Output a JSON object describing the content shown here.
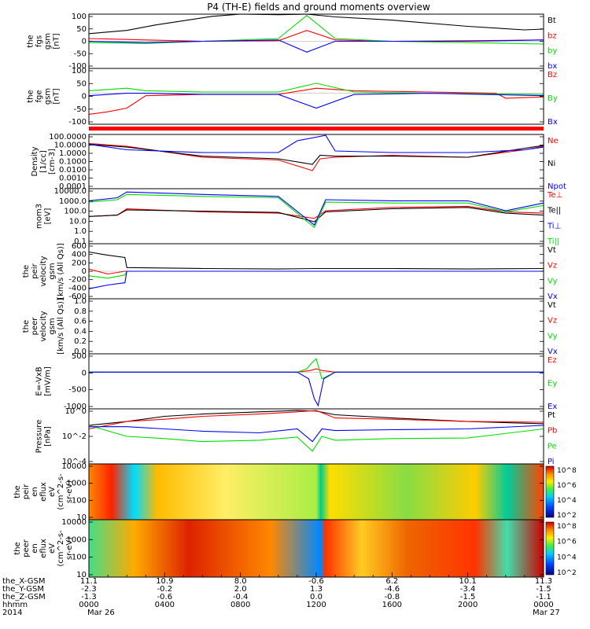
{
  "title": "P4 (TH-E) fields and ground moments overview",
  "colors": {
    "black": "#000000",
    "red": "#ff0000",
    "green": "#00dd00",
    "blue": "#0000ff"
  },
  "chart_data": [
    {
      "type": "line",
      "panel": "fgs",
      "ylabel": [
        "the",
        "fgs",
        "gsm",
        "[nT]"
      ],
      "yticks": [
        "100",
        "50",
        "0",
        "-50",
        "-100"
      ],
      "ylim": [
        -100,
        100
      ],
      "legend": [
        {
          "name": "Bt",
          "color": "black"
        },
        {
          "name": "bz",
          "color": "red"
        },
        {
          "name": "by",
          "color": "green"
        },
        {
          "name": "bx",
          "color": "blue"
        }
      ],
      "series": [
        {
          "name": "Bt",
          "x": [
            0,
            2,
            3.5,
            6.5,
            8,
            10,
            11.5,
            13,
            16,
            20,
            23,
            24
          ],
          "y": [
            28,
            40,
            60,
            92,
            100,
            98,
            100,
            90,
            78,
            55,
            42,
            45
          ]
        },
        {
          "name": "bz",
          "x": [
            0,
            3,
            6,
            10,
            11.5,
            13,
            16,
            20,
            24
          ],
          "y": [
            10,
            5,
            0,
            2,
            40,
            5,
            0,
            2,
            5
          ]
        },
        {
          "name": "by",
          "x": [
            0,
            3,
            6,
            10,
            11.5,
            13,
            16,
            20,
            24
          ],
          "y": [
            -5,
            -8,
            0,
            10,
            95,
            10,
            0,
            -5,
            -10
          ]
        },
        {
          "name": "bx",
          "x": [
            0,
            3,
            6,
            10,
            11.5,
            13,
            16,
            20,
            24
          ],
          "y": [
            0,
            -5,
            0,
            5,
            -40,
            0,
            0,
            0,
            5
          ]
        }
      ]
    },
    {
      "type": "line",
      "panel": "fge",
      "ylabel": [
        "the",
        "fge",
        "gsm",
        "[nT]"
      ],
      "yticks": [
        "100",
        "50",
        "0",
        "-50",
        "-100"
      ],
      "ylim": [
        -125,
        100
      ],
      "legend": [
        {
          "name": "Bz",
          "color": "red"
        },
        {
          "name": "By",
          "color": "green"
        },
        {
          "name": "Bx",
          "color": "blue"
        }
      ],
      "series": [
        {
          "name": "Bz",
          "x": [
            0,
            1,
            2,
            3,
            6,
            10,
            12,
            14,
            18,
            21.5,
            22,
            24
          ],
          "y": [
            -85,
            -75,
            -60,
            -10,
            -5,
            -5,
            20,
            10,
            5,
            0,
            -20,
            -15
          ]
        },
        {
          "name": "By",
          "x": [
            0,
            1,
            2,
            3,
            6,
            10,
            12,
            14,
            18,
            24
          ],
          "y": [
            10,
            15,
            20,
            10,
            5,
            5,
            40,
            5,
            0,
            -5
          ]
        },
        {
          "name": "Bx",
          "x": [
            0,
            1,
            2,
            3,
            6,
            10,
            12,
            14,
            18,
            24
          ],
          "y": [
            -10,
            -5,
            0,
            0,
            -5,
            -5,
            -60,
            -5,
            0,
            -10
          ]
        }
      ]
    },
    {
      "type": "line",
      "panel": "density",
      "scale": "log",
      "ylabel": [
        "Density",
        "[1/cc]",
        "[cm-3]"
      ],
      "yticks": [
        "100.0000",
        "10.0000",
        "1.0000",
        "0.1000",
        "0.0100",
        "0.0010",
        "0.0001"
      ],
      "ylim": [
        0.0001,
        100
      ],
      "legend": [
        {
          "name": "Ne",
          "color": "red"
        },
        {
          "name": "Ni",
          "color": "black"
        },
        {
          "name": "Npot",
          "color": "blue"
        }
      ],
      "series": [
        {
          "name": "Ne",
          "x": [
            0,
            2,
            6,
            10,
            11.8,
            12.2,
            13,
            16,
            20,
            23,
            24
          ],
          "y": [
            10,
            5,
            0.3,
            0.15,
            0.01,
            0.2,
            0.3,
            0.5,
            0.3,
            2,
            5
          ]
        },
        {
          "name": "Ni",
          "x": [
            0,
            2,
            6,
            10,
            11.8,
            12.2,
            13,
            16,
            20,
            23,
            24
          ],
          "y": [
            8,
            4,
            0.4,
            0.2,
            0.05,
            0.5,
            0.4,
            0.4,
            0.3,
            3,
            6
          ]
        },
        {
          "name": "Npot",
          "x": [
            0,
            2,
            6,
            10,
            11,
            12.5,
            13,
            16,
            20,
            23,
            24
          ],
          "y": [
            8,
            2,
            1,
            1,
            20,
            80,
            1.5,
            1,
            1,
            2,
            4
          ]
        }
      ]
    },
    {
      "type": "line",
      "panel": "temperature",
      "scale": "log",
      "ylabel": [
        "mom3",
        "[eV]"
      ],
      "yticks": [
        "10000.0",
        "1000.0",
        "100.0",
        "10.0",
        "1.0",
        "0.1"
      ],
      "ylim": [
        0.1,
        10000
      ],
      "legend": [
        {
          "name": "Te⊥",
          "color": "red"
        },
        {
          "name": "Te||",
          "color": "black"
        },
        {
          "name": "Ti⊥",
          "color": "blue"
        },
        {
          "name": "Ti||",
          "color": "green"
        }
      ],
      "series": [
        {
          "name": "Te⊥",
          "x": [
            0,
            1.5,
            2,
            6,
            10,
            11.9,
            12.5,
            16,
            20,
            22,
            24
          ],
          "y": [
            30,
            40,
            150,
            80,
            60,
            20,
            100,
            200,
            250,
            80,
            60
          ]
        },
        {
          "name": "Te||",
          "x": [
            0,
            1.5,
            2,
            6,
            10,
            11.9,
            12.5,
            16,
            20,
            22,
            24
          ],
          "y": [
            30,
            40,
            120,
            90,
            70,
            10,
            80,
            150,
            200,
            60,
            40
          ]
        },
        {
          "name": "Ti⊥",
          "x": [
            0,
            1.5,
            2,
            6,
            10,
            11.9,
            12.5,
            16,
            20,
            22,
            24
          ],
          "y": [
            800,
            1500,
            5000,
            3000,
            2000,
            5,
            1000,
            800,
            800,
            100,
            500
          ]
        },
        {
          "name": "Ti||",
          "x": [
            0,
            1.5,
            2,
            6,
            10,
            11.9,
            12.5,
            16,
            20,
            22,
            24
          ],
          "y": [
            600,
            1000,
            3000,
            2000,
            1500,
            3,
            600,
            500,
            500,
            80,
            300
          ]
        }
      ]
    },
    {
      "type": "line",
      "panel": "peir_velocity",
      "ylabel": [
        "the",
        "peir",
        "velocity",
        "gsm",
        "[km/s (All Qs)]"
      ],
      "yticks": [
        "600",
        "400",
        "200",
        "0",
        "-200",
        "-400",
        "-600"
      ],
      "ylim": [
        -600,
        600
      ],
      "legend": [
        {
          "name": "Vt",
          "color": "black"
        },
        {
          "name": "Vz",
          "color": "red"
        },
        {
          "name": "Vy",
          "color": "green"
        },
        {
          "name": "Vx",
          "color": "blue"
        }
      ],
      "series": [
        {
          "name": "Vt",
          "x": [
            0,
            1,
            1.9,
            2,
            6,
            10,
            12,
            16,
            20,
            24
          ],
          "y": [
            420,
            350,
            300,
            80,
            60,
            50,
            60,
            60,
            50,
            60
          ]
        },
        {
          "name": "Vz",
          "x": [
            0,
            1,
            1.9,
            2,
            6,
            10,
            12,
            16,
            20,
            24
          ],
          "y": [
            50,
            -60,
            0,
            0,
            0,
            0,
            0,
            0,
            0,
            0
          ]
        },
        {
          "name": "Vy",
          "x": [
            0,
            1,
            1.9,
            2,
            6,
            10,
            12,
            16,
            20,
            24
          ],
          "y": [
            -100,
            -150,
            -80,
            0,
            0,
            0,
            0,
            0,
            0,
            0
          ]
        },
        {
          "name": "Vx",
          "x": [
            0,
            1,
            1.9,
            2,
            6,
            10,
            12,
            16,
            20,
            24
          ],
          "y": [
            -380,
            -300,
            -250,
            0,
            0,
            0,
            0,
            0,
            0,
            0
          ]
        }
      ]
    },
    {
      "type": "line",
      "panel": "peer_velocity",
      "ylabel": [
        "the",
        "peer",
        "velocity",
        "gsm",
        "[km/s (All Qs)]"
      ],
      "yticks": [
        "1.0",
        "0.8",
        "0.6",
        "0.4",
        "0.2",
        "0.0"
      ],
      "ylim": [
        0,
        1
      ],
      "legend": [
        {
          "name": "Vt",
          "color": "black"
        },
        {
          "name": "Vz",
          "color": "red"
        },
        {
          "name": "Vy",
          "color": "green"
        },
        {
          "name": "Vx",
          "color": "blue"
        }
      ],
      "series": []
    },
    {
      "type": "line",
      "panel": "exb",
      "ylabel": [
        "E=-VxB",
        "[mV/m]"
      ],
      "yticks": [
        "500",
        "0",
        "-500",
        "-1000"
      ],
      "ylim": [
        -1100,
        550
      ],
      "legend": [
        {
          "name": "Ez",
          "color": "red"
        },
        {
          "name": "Ey",
          "color": "green"
        },
        {
          "name": "Ex",
          "color": "blue"
        }
      ],
      "series": [
        {
          "name": "Ez",
          "x": [
            0,
            11,
            11.7,
            12,
            12.3,
            13,
            24
          ],
          "y": [
            0,
            0,
            50,
            100,
            50,
            0,
            0
          ]
        },
        {
          "name": "Ey",
          "x": [
            0,
            11,
            11.5,
            11.8,
            12,
            12.3,
            13,
            24
          ],
          "y": [
            0,
            0,
            100,
            300,
            400,
            -200,
            0,
            0
          ]
        },
        {
          "name": "Ex",
          "x": [
            0,
            11,
            11.6,
            11.9,
            12.1,
            12.4,
            13,
            24
          ],
          "y": [
            0,
            0,
            -200,
            -800,
            -1000,
            -200,
            0,
            0
          ]
        }
      ]
    },
    {
      "type": "line",
      "panel": "pressure",
      "scale": "log",
      "ylabel": [
        "Pressure",
        "[nPa]"
      ],
      "yticks": [
        "10^0",
        "10^-2",
        "10^-4"
      ],
      "ylim": [
        2e-06,
        50
      ],
      "legend": [
        {
          "name": "Pt",
          "color": "black"
        },
        {
          "name": "Pb",
          "color": "red"
        },
        {
          "name": "Pe",
          "color": "green"
        },
        {
          "name": "Pi",
          "color": "blue"
        }
      ],
      "series": [
        {
          "name": "Pt",
          "x": [
            0,
            2,
            4,
            6,
            9,
            11,
            12,
            13,
            16,
            20,
            24
          ],
          "y": [
            0.3,
            1,
            5,
            10,
            20,
            30,
            25,
            8,
            3,
            1,
            0.5
          ]
        },
        {
          "name": "Pb",
          "x": [
            0,
            2,
            4,
            6,
            9,
            11,
            12,
            13,
            16,
            20,
            24
          ],
          "y": [
            0.1,
            1,
            2,
            5,
            10,
            20,
            30,
            3,
            2,
            1,
            0.8
          ]
        },
        {
          "name": "Pe",
          "x": [
            0,
            2,
            4,
            6,
            9,
            11,
            11.8,
            12.3,
            13,
            16,
            20,
            24
          ],
          "y": [
            0.3,
            0.01,
            0.005,
            0.002,
            0.003,
            0.008,
            0.0001,
            0.01,
            0.003,
            0.005,
            0.006,
            0.1
          ]
        },
        {
          "name": "Pi",
          "x": [
            0,
            2,
            4,
            6,
            9,
            11,
            11.8,
            12.3,
            13,
            16,
            20,
            24
          ],
          "y": [
            0.2,
            0.2,
            0.1,
            0.05,
            0.03,
            0.1,
            0.002,
            0.1,
            0.06,
            0.08,
            0.1,
            0.3
          ]
        }
      ]
    },
    {
      "type": "heatmap",
      "panel": "peir_eflux",
      "ylabel": [
        "the",
        "peir",
        "en",
        "eflux",
        "eV",
        "(cm^2-s-",
        "sr-eV)"
      ],
      "yticks": [
        "10000",
        "1000",
        "100",
        "10"
      ],
      "ylim": [
        5,
        30000
      ],
      "colorbar": {
        "ticks": [
          "10^8",
          "10^6",
          "10^4",
          "10^2"
        ]
      }
    },
    {
      "type": "heatmap",
      "panel": "peer_eflux",
      "ylabel": [
        "the",
        "peer",
        "en",
        "eflux",
        "eV",
        "(cm^2-s-",
        "sr-eV)"
      ],
      "yticks": [
        "10000",
        "1000",
        "100",
        "10"
      ],
      "ylim": [
        5,
        30000
      ],
      "colorbar": {
        "ticks": [
          "10^8",
          "10^6",
          "10^4",
          "10^2"
        ]
      }
    }
  ],
  "xaxis": {
    "rows": [
      {
        "label": "the_X-GSM",
        "values": [
          "11.1",
          "10.9",
          "8.0",
          "-0.6",
          "6.2",
          "10.1",
          "11.3"
        ]
      },
      {
        "label": "the_Y-GSM",
        "values": [
          "-2.3",
          "-0.2",
          "2.0",
          "1.3",
          "-4.6",
          "-3.4",
          "-1.5"
        ]
      },
      {
        "label": "the_Z-GSM",
        "values": [
          "-1.3",
          "-0.6",
          "-0.4",
          "0.0",
          "-0.8",
          "-1.5",
          "-1.1"
        ]
      },
      {
        "label": "hhmm",
        "values": [
          "0000",
          "0400",
          "0800",
          "1200",
          "1600",
          "2000",
          "0000"
        ]
      }
    ],
    "year_label": "2014",
    "start_date": "Mar 26",
    "end_date": "Mar 27",
    "range_hours": [
      0,
      24
    ]
  }
}
